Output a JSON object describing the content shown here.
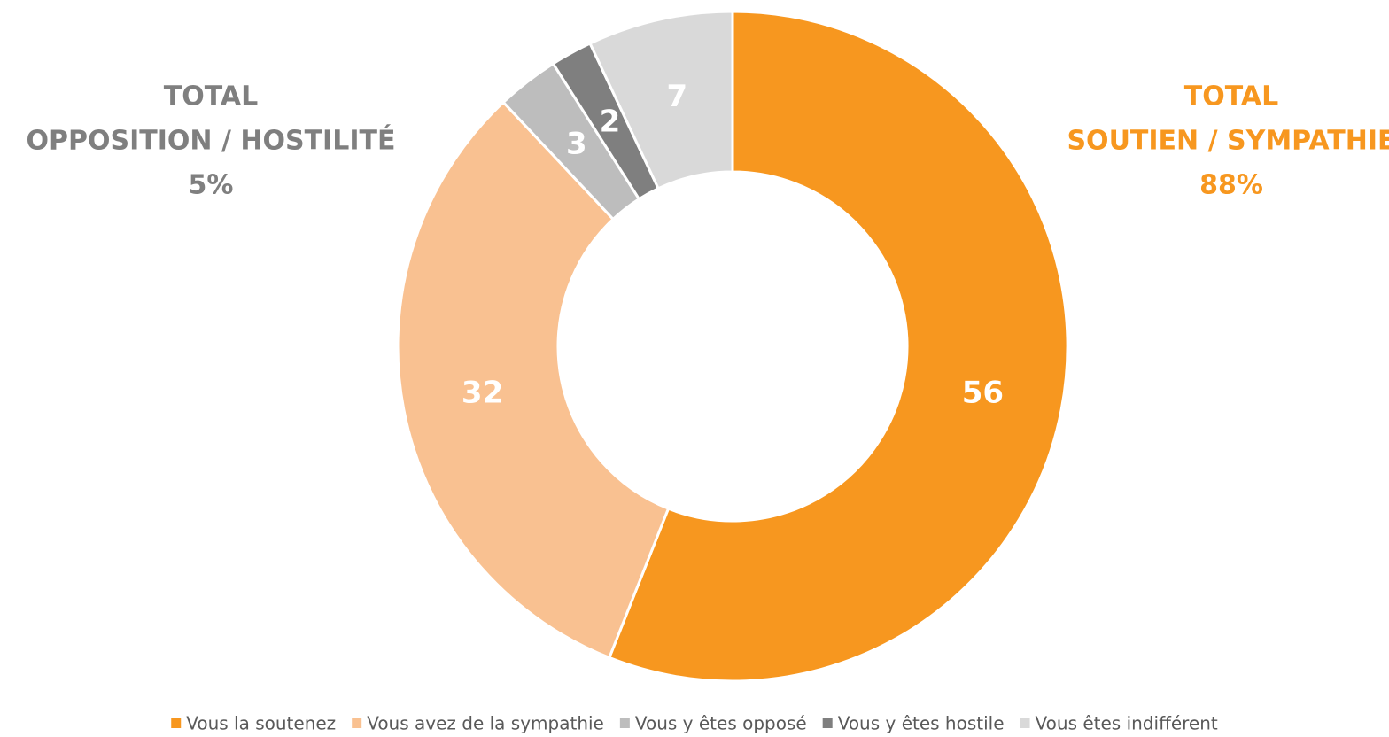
{
  "chart_data": {
    "type": "donut",
    "categories": [
      "Vous la soutenez",
      "Vous avez de la sympathie",
      "Vous y êtes opposé",
      "Vous y êtes hostile",
      "Vous êtes indifférent"
    ],
    "values": [
      56,
      32,
      3,
      2,
      7
    ],
    "colors": [
      "#f7971f",
      "#f9c191",
      "#bdbdbd",
      "#7f7f7f",
      "#d9d9d9"
    ],
    "legend": "bottom",
    "annotations": [
      {
        "lines": [
          "TOTAL",
          "OPPOSITION / HOSTILITÉ",
          "5%"
        ],
        "color": "#7f7f7f"
      },
      {
        "lines": [
          "TOTAL",
          "SOUTIEN / SYMPATHIE",
          "88%"
        ],
        "color": "#f7971f"
      }
    ]
  }
}
